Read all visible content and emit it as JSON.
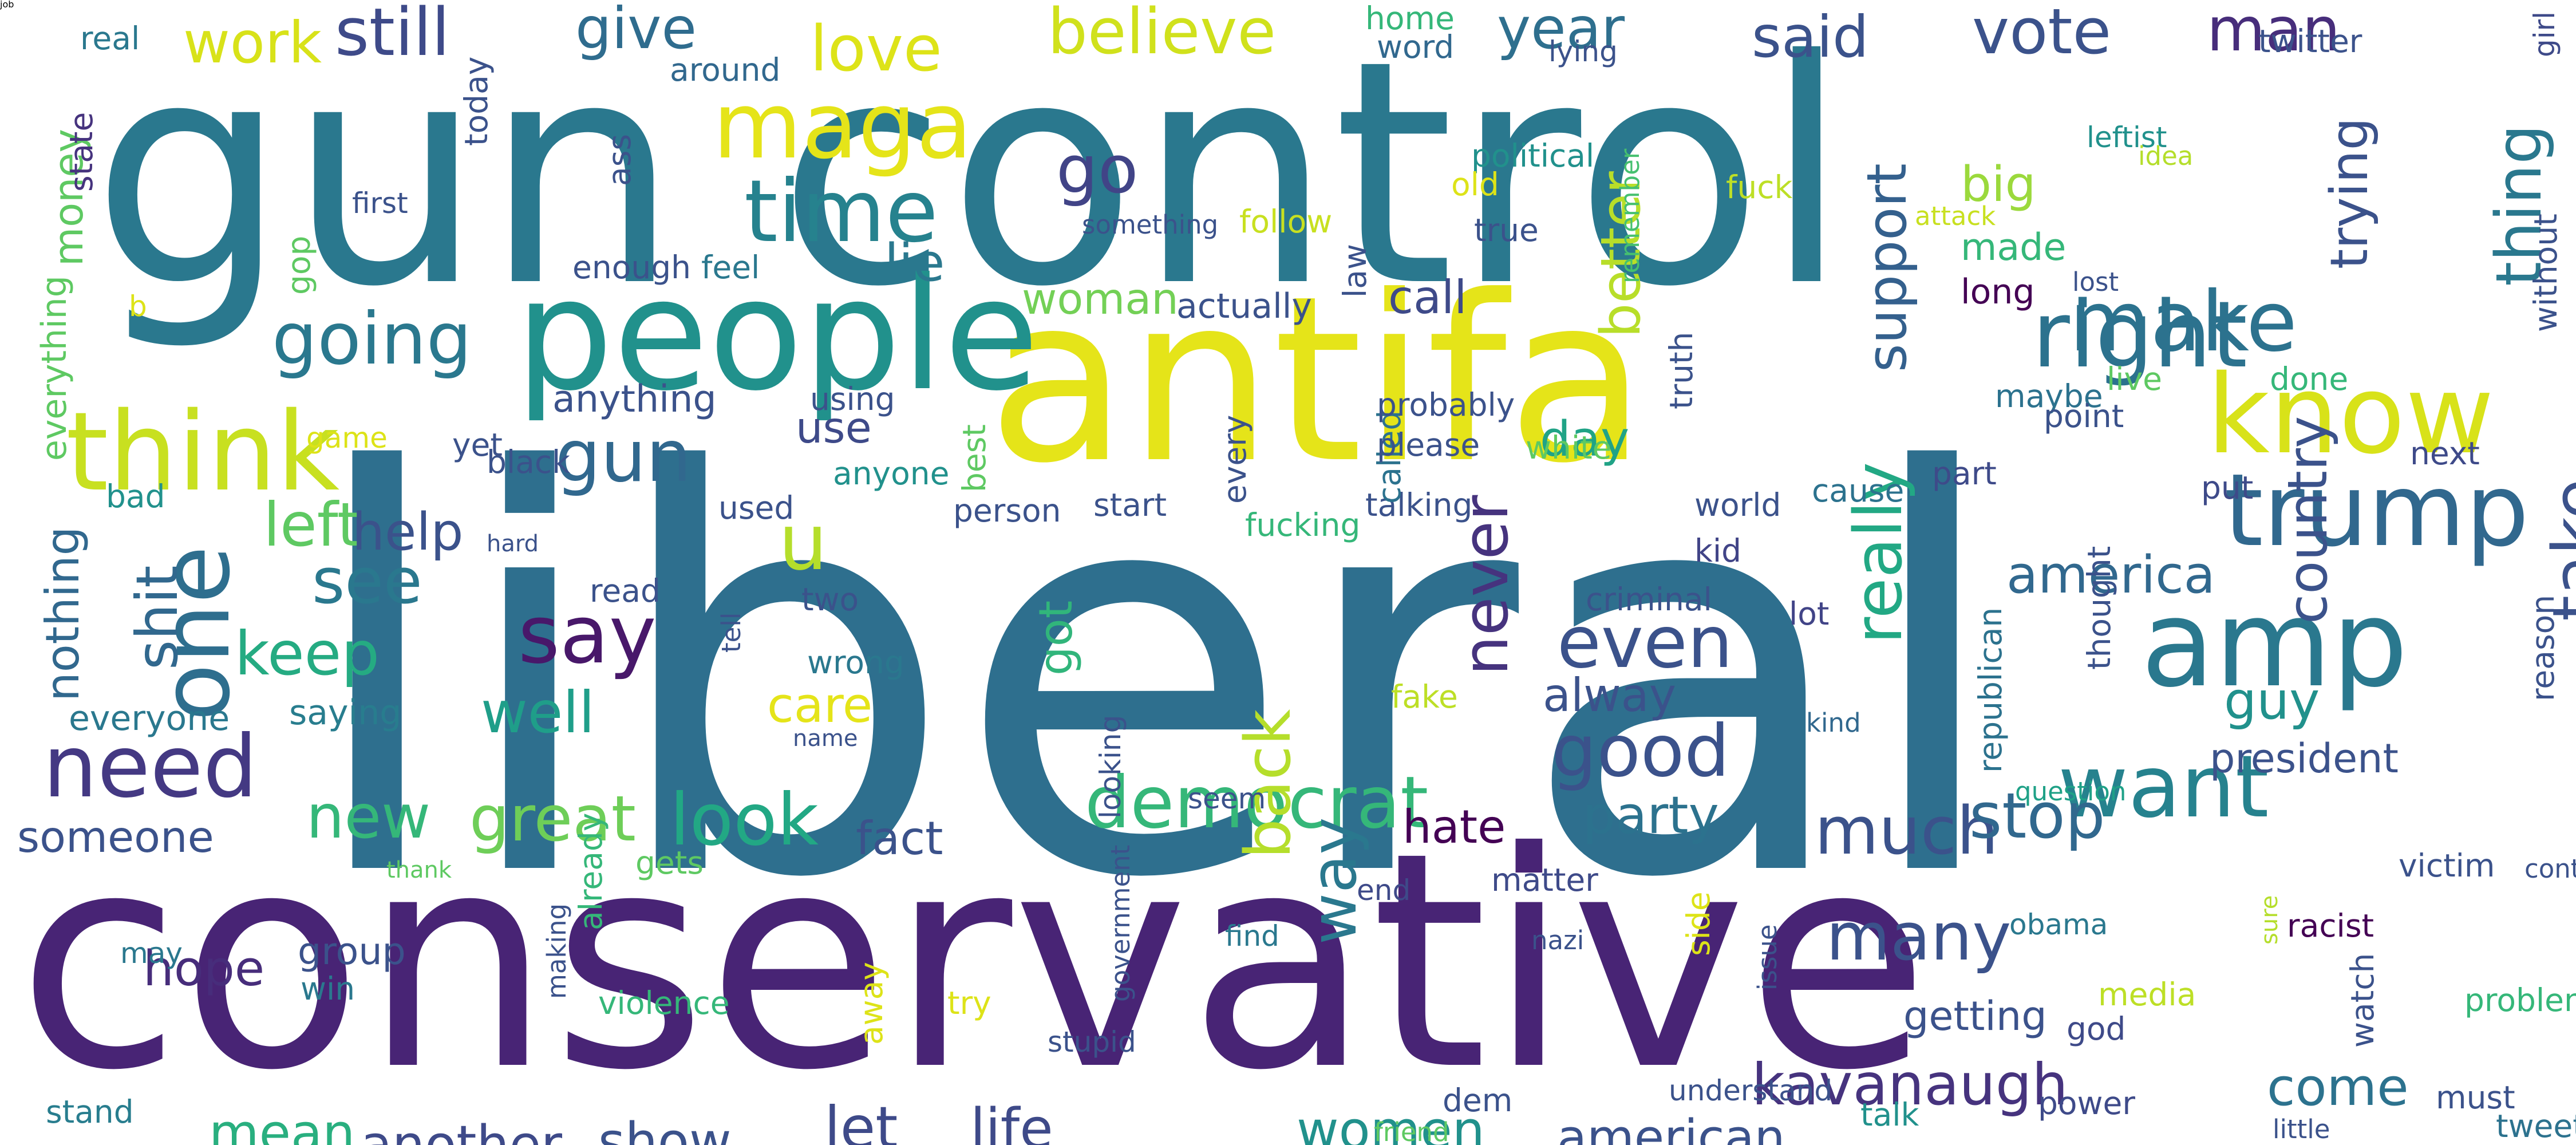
{
  "words": [
    {
      "text": "liberal",
      "color": "#2e6f8e"
    },
    {
      "text": "conservative",
      "color": "#482475"
    },
    {
      "text": "gun control",
      "color": "#2a788e"
    },
    {
      "text": "antifa",
      "color": "#e5e419"
    },
    {
      "text": "people",
      "color": "#21918c"
    },
    {
      "text": "think",
      "color": "#c8e020"
    },
    {
      "text": "amp",
      "color": "#2a788e"
    },
    {
      "text": "trump",
      "color": "#31688e"
    },
    {
      "text": "know",
      "color": "#d8e219"
    },
    {
      "text": "right",
      "color": "#2c728e"
    },
    {
      "text": "time",
      "color": "#26828e"
    },
    {
      "text": "maga",
      "color": "#e5e419"
    },
    {
      "text": "make",
      "color": "#2c728e"
    },
    {
      "text": "want",
      "color": "#26828e"
    },
    {
      "text": "need",
      "color": "#443983"
    },
    {
      "text": "one",
      "color": "#2e6e8e"
    },
    {
      "text": "say",
      "color": "#48186a"
    },
    {
      "text": "going",
      "color": "#2a788e"
    },
    {
      "text": "gun",
      "color": "#31688e"
    },
    {
      "text": "go",
      "color": "#414487"
    },
    {
      "text": "good",
      "color": "#3b528b"
    },
    {
      "text": "even",
      "color": "#3b528b"
    },
    {
      "text": "democrat",
      "color": "#35b779"
    },
    {
      "text": "many",
      "color": "#3b528b"
    },
    {
      "text": "look",
      "color": "#22a884"
    },
    {
      "text": "great",
      "color": "#6ece58"
    },
    {
      "text": "new",
      "color": "#35b779"
    },
    {
      "text": "much",
      "color": "#3b528b"
    },
    {
      "text": "stop",
      "color": "#31688e"
    },
    {
      "text": "take",
      "color": "#3b528b"
    },
    {
      "text": "really",
      "color": "#22a884"
    },
    {
      "text": "never",
      "color": "#46337e"
    },
    {
      "text": "back",
      "color": "#b5de2b"
    },
    {
      "text": "way",
      "color": "#2a788e"
    },
    {
      "text": "kavanaugh",
      "color": "#46337e"
    },
    {
      "text": "shit",
      "color": "#31688e"
    },
    {
      "text": "see",
      "color": "#2a788e"
    },
    {
      "text": "keep",
      "color": "#25ab82"
    },
    {
      "text": "left",
      "color": "#5ec962"
    },
    {
      "text": "love",
      "color": "#dde318"
    },
    {
      "text": "believe",
      "color": "#d0e11c"
    },
    {
      "text": "still",
      "color": "#3e4a89"
    },
    {
      "text": "give",
      "color": "#2f6c8e"
    },
    {
      "text": "work",
      "color": "#d8e219"
    },
    {
      "text": "country",
      "color": "#3b528b"
    },
    {
      "text": "thing",
      "color": "#2a788e"
    },
    {
      "text": "vote",
      "color": "#3b528b"
    },
    {
      "text": "man",
      "color": "#472d7b"
    },
    {
      "text": "year",
      "color": "#2e6f8e"
    },
    {
      "text": "said",
      "color": "#3b528b"
    },
    {
      "text": "support",
      "color": "#34608d"
    },
    {
      "text": "trying",
      "color": "#3b528b"
    },
    {
      "text": "america",
      "color": "#31688e"
    },
    {
      "text": "guy",
      "color": "#21918c"
    },
    {
      "text": "u",
      "color": "#b5de2b"
    },
    {
      "text": "well",
      "color": "#1f9e89"
    },
    {
      "text": "women",
      "color": "#21918c"
    },
    {
      "text": "american",
      "color": "#3b528b"
    },
    {
      "text": "come",
      "color": "#2c728e"
    },
    {
      "text": "show",
      "color": "#3b528b"
    },
    {
      "text": "let",
      "color": "#3e4a89"
    },
    {
      "text": "life",
      "color": "#3e4a89"
    },
    {
      "text": "mean",
      "color": "#29af7f"
    },
    {
      "text": "another",
      "color": "#3e4a89"
    },
    {
      "text": "hope",
      "color": "#472d7b"
    },
    {
      "text": "someone",
      "color": "#3b528b"
    },
    {
      "text": "party",
      "color": "#2c728e"
    },
    {
      "text": "better",
      "color": "#b8de29"
    },
    {
      "text": "call",
      "color": "#3e4a89"
    },
    {
      "text": "day",
      "color": "#20a386"
    },
    {
      "text": "alway",
      "color": "#3b528b"
    },
    {
      "text": "hate",
      "color": "#440154"
    },
    {
      "text": "fact",
      "color": "#3b528b"
    },
    {
      "text": "got",
      "color": "#31b57b"
    },
    {
      "text": "lie",
      "color": "#2a788e"
    },
    {
      "text": "woman",
      "color": "#73d056"
    },
    {
      "text": "help",
      "color": "#3b528b"
    },
    {
      "text": "nothing",
      "color": "#31688e"
    },
    {
      "text": "money",
      "color": "#5ec962"
    },
    {
      "text": "everyone",
      "color": "#2a788e"
    },
    {
      "text": "saying",
      "color": "#287d8e"
    },
    {
      "text": "care",
      "color": "#e5e419"
    },
    {
      "text": "getting",
      "color": "#3b528b"
    },
    {
      "text": "big",
      "color": "#9bd93c"
    },
    {
      "text": "use",
      "color": "#3e4a89"
    },
    {
      "text": "anything",
      "color": "#3b528b"
    },
    {
      "text": "president",
      "color": "#3b528b"
    },
    {
      "text": "made",
      "color": "#35b779"
    },
    {
      "text": "long",
      "color": "#440154"
    },
    {
      "text": "actually",
      "color": "#3b528b"
    },
    {
      "text": "everything",
      "color": "#5ec962"
    },
    {
      "text": "state",
      "color": "#46337e"
    },
    {
      "text": "real",
      "color": "#2a788e"
    },
    {
      "text": "around",
      "color": "#31688e"
    },
    {
      "text": "word",
      "color": "#31688e"
    },
    {
      "text": "home",
      "color": "#35b779"
    },
    {
      "text": "lying",
      "color": "#3b528b"
    },
    {
      "text": "twitter",
      "color": "#3b528b"
    },
    {
      "text": "girl",
      "color": "#3e4a89"
    },
    {
      "text": "leftist",
      "color": "#21918c"
    },
    {
      "text": "idea",
      "color": "#b5de2b"
    },
    {
      "text": "attack",
      "color": "#c8e020"
    },
    {
      "text": "fuck",
      "color": "#bddf26"
    },
    {
      "text": "remember",
      "color": "#46c06f"
    },
    {
      "text": "lost",
      "color": "#3b528b"
    },
    {
      "text": "without",
      "color": "#3b528b"
    },
    {
      "text": "next",
      "color": "#3e4a89"
    },
    {
      "text": "done",
      "color": "#35b779"
    },
    {
      "text": "live",
      "color": "#5ec962"
    },
    {
      "text": "maybe",
      "color": "#2c728e"
    },
    {
      "text": "point",
      "color": "#3b528b"
    },
    {
      "text": "part",
      "color": "#3e4a89"
    },
    {
      "text": "put",
      "color": "#3e4a89"
    },
    {
      "text": "cause",
      "color": "#2c728e"
    },
    {
      "text": "world",
      "color": "#3b528b"
    },
    {
      "text": "kid",
      "color": "#414487"
    },
    {
      "text": "lot",
      "color": "#414487"
    },
    {
      "text": "criminal",
      "color": "#3b528b"
    },
    {
      "text": "republican",
      "color": "#2c728e"
    },
    {
      "text": "thought",
      "color": "#3b528b"
    },
    {
      "text": "reason",
      "color": "#3b528b"
    },
    {
      "text": "control law",
      "color": "#3b528b"
    },
    {
      "text": "victim",
      "color": "#3b528b"
    },
    {
      "text": "racist",
      "color": "#440154"
    },
    {
      "text": "sure",
      "color": "#b5de2b"
    },
    {
      "text": "question",
      "color": "#1fa187"
    },
    {
      "text": "kind",
      "color": "#31688e"
    },
    {
      "text": "media",
      "color": "#bddf26"
    },
    {
      "text": "god",
      "color": "#3e4a89"
    },
    {
      "text": "obama",
      "color": "#2a788e"
    },
    {
      "text": "watch",
      "color": "#3b528b"
    },
    {
      "text": "problem",
      "color": "#35b779"
    },
    {
      "text": "power",
      "color": "#3e4a89"
    },
    {
      "text": "talk",
      "color": "#21918c"
    },
    {
      "text": "must",
      "color": "#3b528b"
    },
    {
      "text": "tweet",
      "color": "#2c728e"
    },
    {
      "text": "little",
      "color": "#3b528b"
    },
    {
      "text": "friend",
      "color": "#5ec962"
    },
    {
      "text": "understand",
      "color": "#3b528b"
    },
    {
      "text": "dem",
      "color": "#3b528b"
    },
    {
      "text": "side",
      "color": "#dde318"
    },
    {
      "text": "issue",
      "color": "#3b528b"
    },
    {
      "text": "nazi",
      "color": "#3b528b"
    },
    {
      "text": "matter",
      "color": "#3e4a89"
    },
    {
      "text": "seem",
      "color": "#3b528b"
    },
    {
      "text": "end",
      "color": "#3e4a89"
    },
    {
      "text": "find",
      "color": "#2a788e"
    },
    {
      "text": "looking",
      "color": "#3b528b"
    },
    {
      "text": "government",
      "color": "#3b528b"
    },
    {
      "text": "stupid",
      "color": "#3b528b"
    },
    {
      "text": "try",
      "color": "#dde318"
    },
    {
      "text": "away",
      "color": "#dde318"
    },
    {
      "text": "making",
      "color": "#3b528b"
    },
    {
      "text": "already",
      "color": "#35b779"
    },
    {
      "text": "violence",
      "color": "#35b779"
    },
    {
      "text": "group",
      "color": "#3b528b"
    },
    {
      "text": "win",
      "color": "#2a788e"
    },
    {
      "text": "may",
      "color": "#2a788e"
    },
    {
      "text": "stand",
      "color": "#287d8e"
    },
    {
      "text": "thank",
      "color": "#5ec962"
    },
    {
      "text": "gets",
      "color": "#5ec962"
    },
    {
      "text": "two",
      "color": "#3b528b"
    },
    {
      "text": "wrong",
      "color": "#2a788e"
    },
    {
      "text": "tell",
      "color": "#3b528b"
    },
    {
      "text": "read",
      "color": "#3b528b"
    },
    {
      "text": "used",
      "color": "#3b528b"
    },
    {
      "text": "name",
      "color": "#3b528b"
    },
    {
      "text": "fake",
      "color": "#bddf26"
    },
    {
      "text": "anyone",
      "color": "#21918c"
    },
    {
      "text": "best",
      "color": "#5ec962"
    },
    {
      "text": "person",
      "color": "#3b528b"
    },
    {
      "text": "start",
      "color": "#3b528b"
    },
    {
      "text": "every",
      "color": "#3b528b"
    },
    {
      "text": "talking",
      "color": "#3b528b"
    },
    {
      "text": "called",
      "color": "#2c728e"
    },
    {
      "text": "fucking",
      "color": "#35b779"
    },
    {
      "text": "probably",
      "color": "#3b528b"
    },
    {
      "text": "please",
      "color": "#3b528b"
    },
    {
      "text": "white",
      "color": "#5ec962"
    },
    {
      "text": "truth",
      "color": "#3b528b"
    },
    {
      "text": "using",
      "color": "#3b528b"
    },
    {
      "text": "black",
      "color": "#3b528b"
    },
    {
      "text": "yet",
      "color": "#3b528b"
    },
    {
      "text": "game",
      "color": "#dde318"
    },
    {
      "text": "bad",
      "color": "#21918c"
    },
    {
      "text": "hard",
      "color": "#3b528b"
    },
    {
      "text": "b",
      "color": "#dde318"
    },
    {
      "text": "gop",
      "color": "#5ec962"
    },
    {
      "text": "enough",
      "color": "#3b528b"
    },
    {
      "text": "feel",
      "color": "#2a788e"
    },
    {
      "text": "first",
      "color": "#3b528b"
    },
    {
      "text": "ass",
      "color": "#3b528b"
    },
    {
      "text": "today",
      "color": "#3b528b"
    },
    {
      "text": "something",
      "color": "#3b528b"
    },
    {
      "text": "follow",
      "color": "#c8e020"
    },
    {
      "text": "law",
      "color": "#3b528b"
    },
    {
      "text": "political",
      "color": "#21918c"
    },
    {
      "text": "old",
      "color": "#dde318"
    },
    {
      "text": "true",
      "color": "#3b528b"
    },
    {
      "text": "job",
      "color": "#21918c"
    }
  ]
}
